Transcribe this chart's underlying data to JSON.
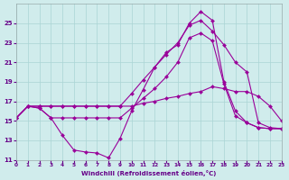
{
  "background_color": "#d0ecec",
  "grid_color": "#aad4d4",
  "line_color": "#990099",
  "xlabel": "Windchill (Refroidissement éolien,°C)",
  "xlabel_color": "#660088",
  "ylabel_color": "#660088",
  "xlim": [
    0,
    23
  ],
  "ylim": [
    11,
    27
  ],
  "yticks": [
    11,
    13,
    15,
    17,
    19,
    21,
    23,
    25
  ],
  "xticks": [
    0,
    1,
    2,
    3,
    4,
    5,
    6,
    7,
    8,
    9,
    10,
    11,
    12,
    13,
    14,
    15,
    16,
    17,
    18,
    19,
    20,
    21,
    22,
    23
  ],
  "series": [
    {
      "x": [
        0,
        1,
        2,
        3,
        4,
        5,
        6,
        7,
        8,
        9,
        10,
        11,
        12,
        13,
        14,
        15,
        16,
        17,
        18,
        19,
        20,
        21,
        22,
        23
      ],
      "y": [
        15.3,
        16.5,
        16.3,
        15.3,
        13.5,
        12.0,
        11.8,
        11.7,
        11.2,
        13.2,
        16.0,
        18.2,
        20.5,
        22.0,
        22.8,
        25.0,
        26.2,
        25.3,
        19.0,
        16.0,
        14.8,
        14.3,
        14.2,
        14.2
      ]
    },
    {
      "x": [
        0,
        1,
        2,
        3,
        4,
        5,
        6,
        7,
        8,
        9,
        10,
        11,
        12,
        13,
        14,
        15,
        16,
        17,
        18,
        19,
        20,
        21,
        22,
        23
      ],
      "y": [
        15.3,
        16.5,
        16.5,
        16.5,
        16.5,
        16.5,
        16.5,
        16.5,
        16.5,
        16.5,
        17.8,
        19.2,
        20.5,
        21.8,
        23.0,
        24.8,
        25.3,
        24.2,
        22.8,
        21.0,
        20.0,
        14.8,
        14.3,
        14.2
      ]
    },
    {
      "x": [
        0,
        1,
        2,
        3,
        4,
        5,
        6,
        7,
        8,
        9,
        10,
        11,
        12,
        13,
        14,
        15,
        16,
        17,
        18,
        19,
        20,
        21,
        22,
        23
      ],
      "y": [
        15.3,
        16.5,
        16.3,
        15.3,
        15.3,
        15.3,
        15.3,
        15.3,
        15.3,
        15.3,
        16.3,
        17.3,
        18.3,
        19.5,
        21.0,
        23.5,
        24.0,
        23.2,
        18.8,
        15.5,
        14.8,
        14.3,
        14.2,
        14.2
      ]
    },
    {
      "x": [
        0,
        1,
        2,
        3,
        4,
        5,
        6,
        7,
        8,
        9,
        10,
        11,
        12,
        13,
        14,
        15,
        16,
        17,
        18,
        19,
        20,
        21,
        22,
        23
      ],
      "y": [
        15.3,
        16.5,
        16.5,
        16.5,
        16.5,
        16.5,
        16.5,
        16.5,
        16.5,
        16.5,
        16.5,
        16.8,
        17.0,
        17.3,
        17.5,
        17.8,
        18.0,
        18.5,
        18.3,
        18.0,
        18.0,
        17.5,
        16.5,
        15.0
      ]
    }
  ]
}
